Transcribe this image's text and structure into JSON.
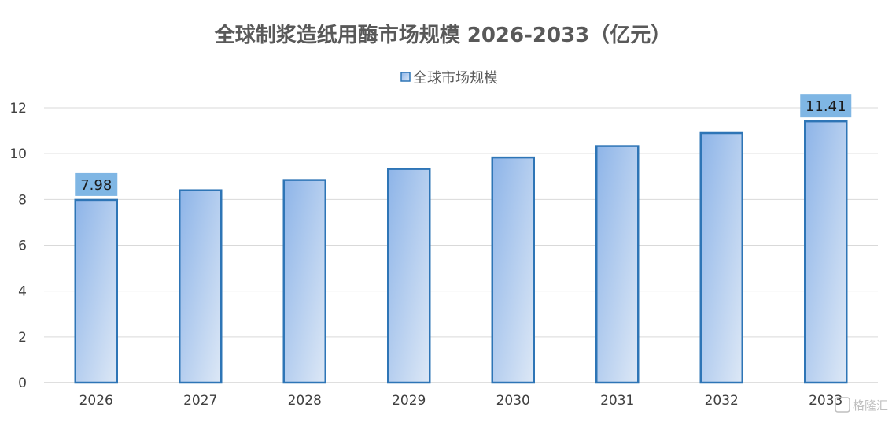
{
  "chart_data": {
    "type": "bar",
    "title": "全球制浆造纸用酶市场规模 2026-2033（亿元）",
    "xlabel": "",
    "ylabel": "",
    "categories": [
      "2026",
      "2027",
      "2028",
      "2029",
      "2030",
      "2031",
      "2032",
      "2033"
    ],
    "series": [
      {
        "name": "全球市场规模",
        "values": [
          7.98,
          8.4,
          8.85,
          9.33,
          9.83,
          10.33,
          10.9,
          11.41
        ]
      }
    ],
    "data_labels": [
      {
        "category": "2026",
        "text": "7.98"
      },
      {
        "category": "2033",
        "text": "11.41"
      }
    ],
    "ylim": [
      0,
      12
    ],
    "yticks": [
      0,
      2,
      4,
      6,
      8,
      10,
      12
    ],
    "grid": true,
    "legend_position": "top-center",
    "colors": {
      "bar_fill_start": "#8db4e8",
      "bar_fill_end": "#dde8f6",
      "bar_stroke": "#2e75b6",
      "label_box": "#7fb6e4",
      "gridline": "#d9d9d9",
      "axis": "#bfbfbf"
    }
  },
  "watermark": {
    "text": "格隆汇"
  }
}
